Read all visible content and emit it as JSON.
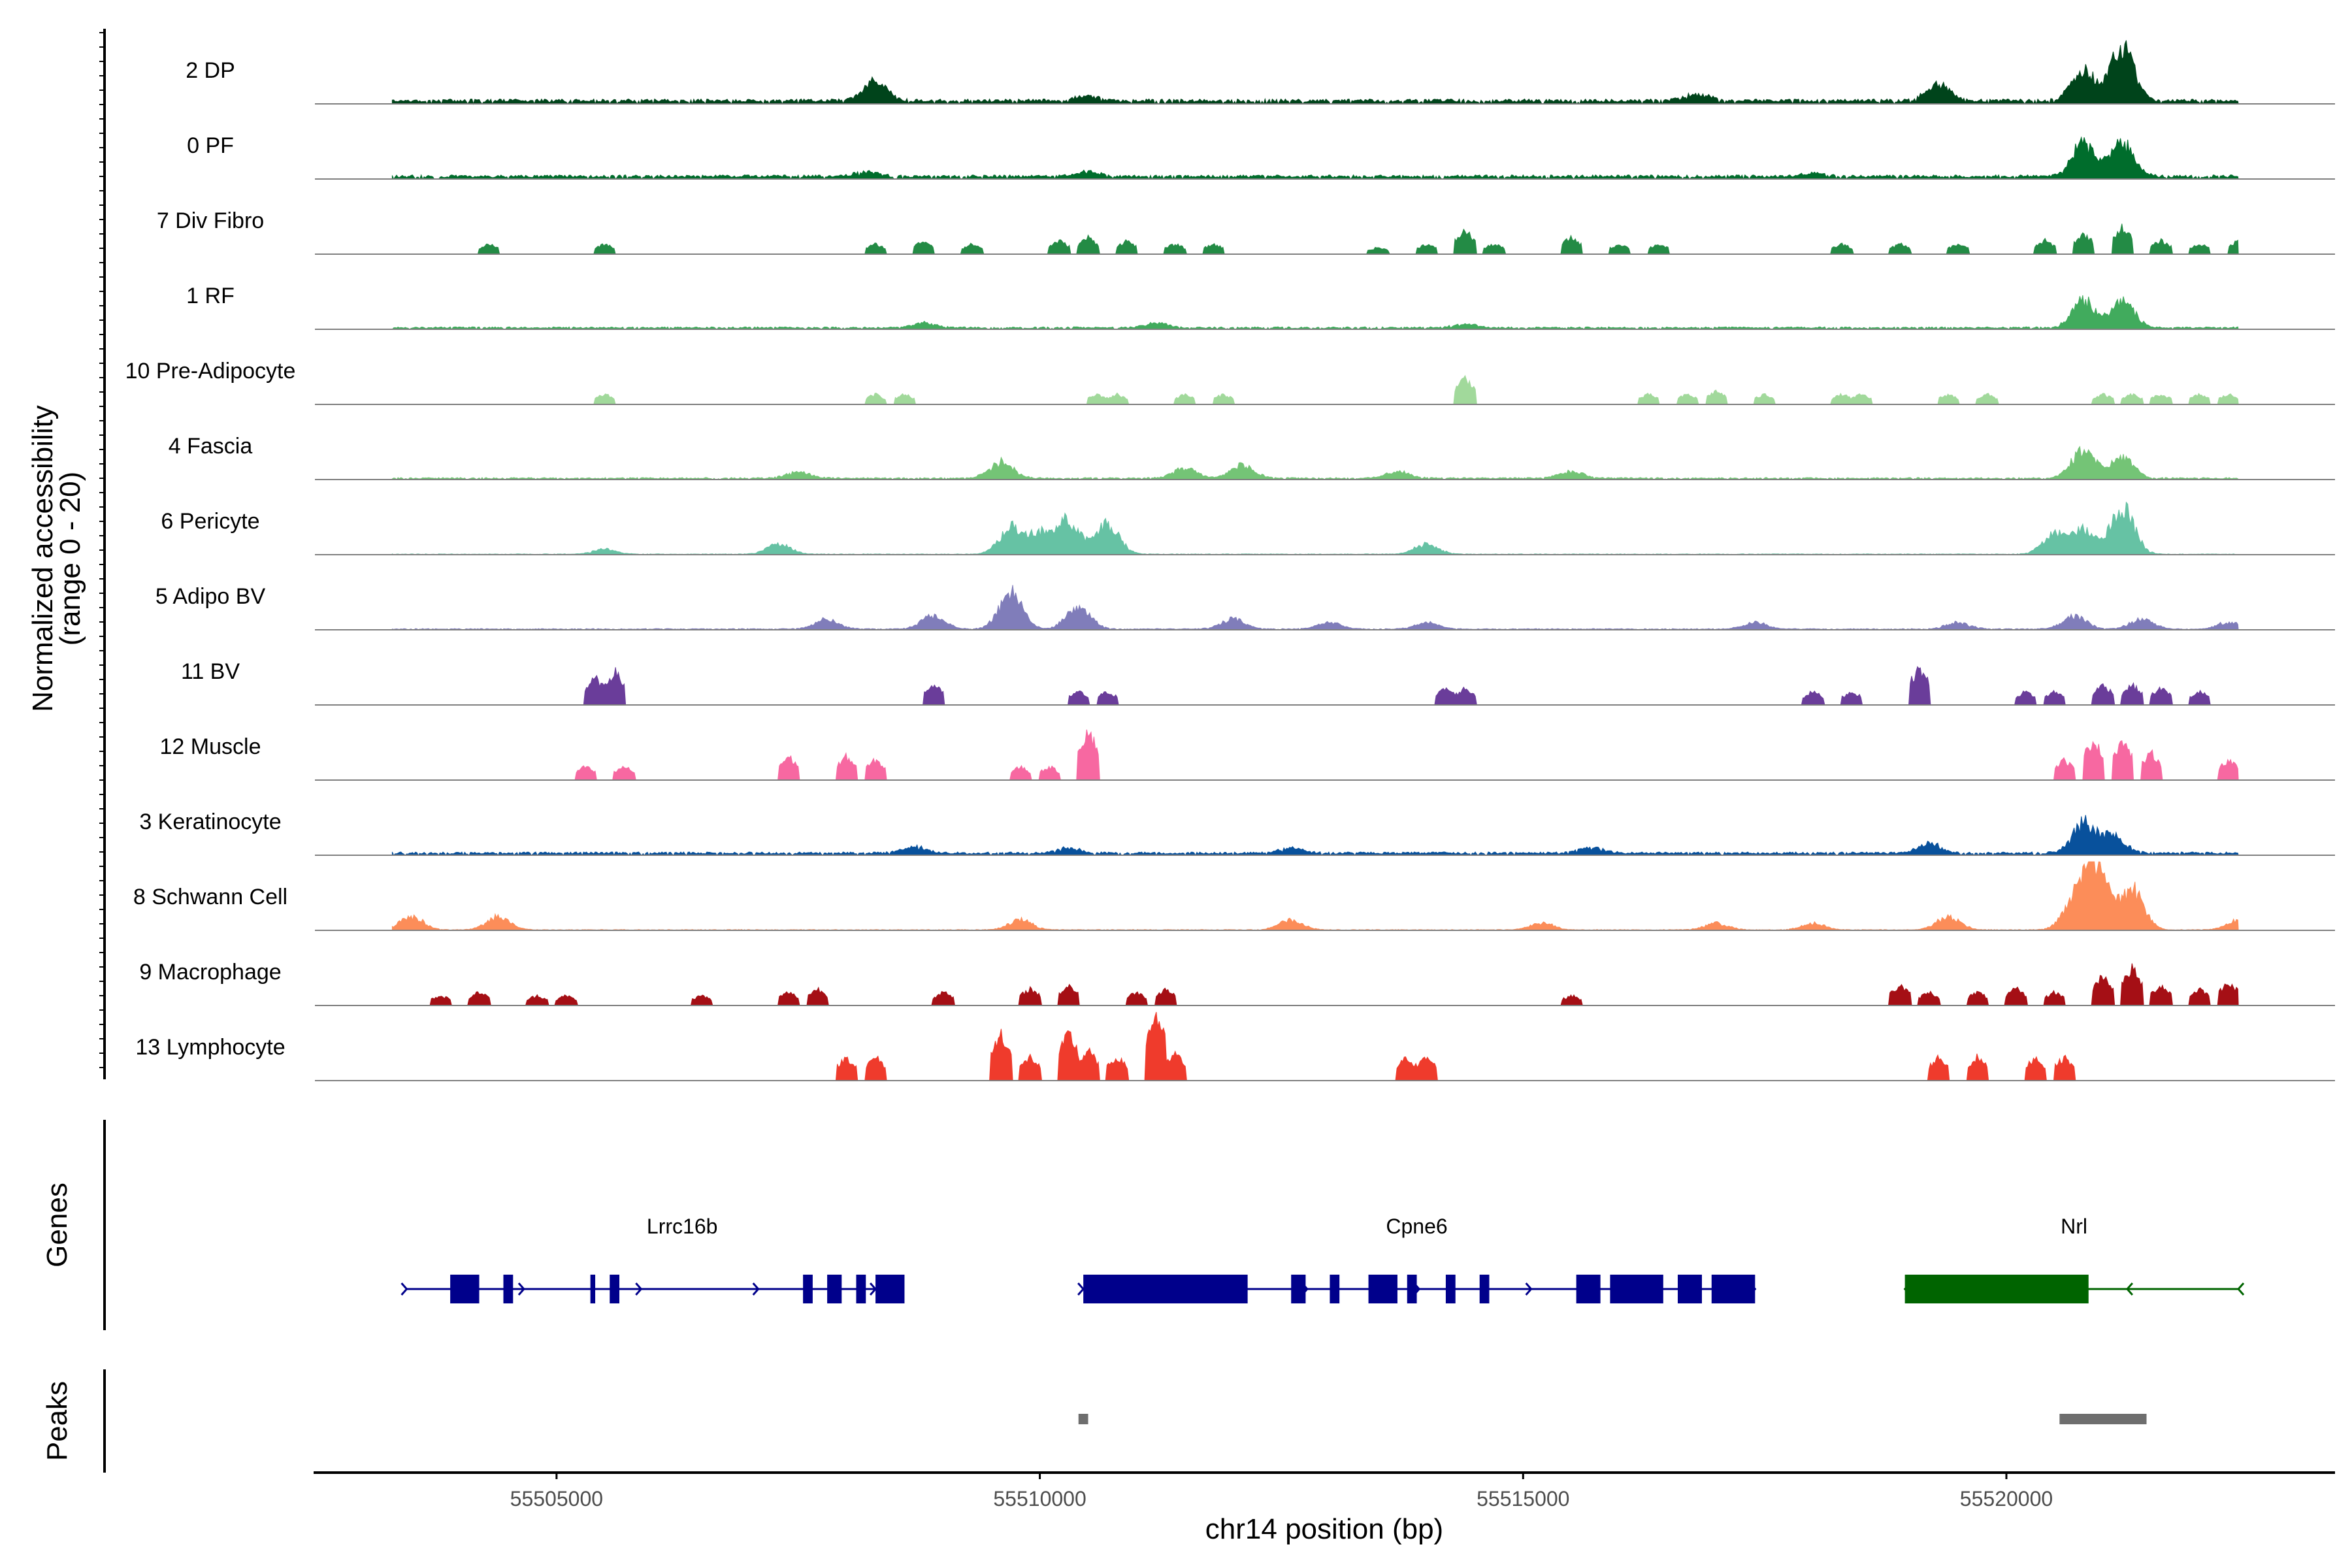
{
  "chart_data": {
    "type": "area",
    "title": "",
    "ylabel_line1": "Normalized accessibility",
    "ylabel_line2": "(range 0 - 20)",
    "genes_label": "Genes",
    "peaks_label": "Peaks",
    "xlabel": "chr14 position (bp)",
    "xlim": [
      55502500,
      55523400
    ],
    "ylim": [
      0,
      20
    ],
    "x_ticks": [
      55505000,
      55510000,
      55515000,
      55520000
    ],
    "x_tick_labels": [
      "55505000",
      "55510000",
      "55515000",
      "55520000"
    ],
    "tracks": [
      {
        "name": "2 DP",
        "color": "#00441b",
        "kind": "smooth",
        "baseline": 1.2,
        "peaks": [
          [
            55508300,
            6
          ],
          [
            55519300,
            5
          ],
          [
            55520800,
            9
          ],
          [
            55521200,
            16
          ],
          [
            55516800,
            2
          ],
          [
            55510500,
            1.5
          ]
        ]
      },
      {
        "name": "0 PF",
        "color": "#006d2c",
        "kind": "smooth",
        "baseline": 1.0,
        "peaks": [
          [
            55520800,
            10
          ],
          [
            55521200,
            10
          ],
          [
            55510500,
            1.5
          ],
          [
            55518000,
            1
          ],
          [
            55508200,
            1.2
          ]
        ]
      },
      {
        "name": "7 Div Fibro",
        "color": "#238b45",
        "kind": "blocky",
        "baseline": 0,
        "peaks": [
          [
            55504300,
            3
          ],
          [
            55505500,
            3
          ],
          [
            55508300,
            3
          ],
          [
            55508800,
            4
          ],
          [
            55509300,
            3
          ],
          [
            55510200,
            4
          ],
          [
            55510500,
            5
          ],
          [
            55510900,
            4
          ],
          [
            55511400,
            3
          ],
          [
            55511800,
            3
          ],
          [
            55513500,
            2
          ],
          [
            55514000,
            3
          ],
          [
            55514400,
            7
          ],
          [
            55514700,
            3
          ],
          [
            55515500,
            5
          ],
          [
            55516000,
            3
          ],
          [
            55516400,
            3
          ],
          [
            55518300,
            3
          ],
          [
            55518900,
            3
          ],
          [
            55519500,
            3
          ],
          [
            55520400,
            4
          ],
          [
            55520800,
            6
          ],
          [
            55521200,
            8
          ],
          [
            55521600,
            4
          ],
          [
            55522000,
            3
          ],
          [
            55522400,
            4
          ]
        ]
      },
      {
        "name": "1 RF",
        "color": "#41ab5d",
        "kind": "smooth",
        "baseline": 0.6,
        "peaks": [
          [
            55520800,
            8
          ],
          [
            55521200,
            8
          ],
          [
            55508800,
            1.5
          ],
          [
            55511200,
            1.5
          ],
          [
            55514400,
            1.2
          ]
        ]
      },
      {
        "name": "10 Pre-Adipocyte",
        "color": "#a1d99b",
        "kind": "blocky",
        "baseline": 0,
        "peaks": [
          [
            55505500,
            3
          ],
          [
            55508300,
            3
          ],
          [
            55508600,
            3
          ],
          [
            55510600,
            3
          ],
          [
            55510800,
            3
          ],
          [
            55511500,
            3
          ],
          [
            55511900,
            3
          ],
          [
            55514400,
            8
          ],
          [
            55516300,
            3
          ],
          [
            55516700,
            3
          ],
          [
            55517000,
            4
          ],
          [
            55517500,
            3
          ],
          [
            55518300,
            3
          ],
          [
            55518500,
            3
          ],
          [
            55519400,
            3
          ],
          [
            55519800,
            3
          ],
          [
            55521000,
            3
          ],
          [
            55521300,
            3
          ],
          [
            55521600,
            3
          ],
          [
            55522000,
            3
          ],
          [
            55522300,
            3
          ]
        ]
      },
      {
        "name": "4 Fascia",
        "color": "#74c476",
        "kind": "smooth",
        "baseline": 0.5,
        "peaks": [
          [
            55509600,
            5
          ],
          [
            55512100,
            4
          ],
          [
            55511500,
            3
          ],
          [
            55513700,
            2
          ],
          [
            55515500,
            2
          ],
          [
            55520800,
            9
          ],
          [
            55521200,
            6
          ],
          [
            55507500,
            2
          ]
        ]
      },
      {
        "name": "6 Pericyte",
        "color": "#66c2a4",
        "kind": "smooth",
        "baseline": 0.2,
        "peaks": [
          [
            55509700,
            8
          ],
          [
            55510300,
            10
          ],
          [
            55510700,
            9
          ],
          [
            55510000,
            6
          ],
          [
            55507300,
            3
          ],
          [
            55514000,
            3
          ],
          [
            55520500,
            6
          ],
          [
            55520800,
            7
          ],
          [
            55521200,
            14
          ],
          [
            55505500,
            1.5
          ]
        ]
      },
      {
        "name": "5 Adipo BV",
        "color": "#807dba",
        "kind": "smooth",
        "baseline": 0.3,
        "peaks": [
          [
            55509700,
            11
          ],
          [
            55510400,
            7
          ],
          [
            55508900,
            4
          ],
          [
            55507800,
            3
          ],
          [
            55512000,
            3
          ],
          [
            55513000,
            2
          ],
          [
            55514000,
            2
          ],
          [
            55517400,
            2
          ],
          [
            55519500,
            2
          ],
          [
            55520700,
            4
          ],
          [
            55521400,
            3
          ],
          [
            55522300,
            2
          ]
        ]
      },
      {
        "name": "11 BV",
        "color": "#6a3d9a",
        "kind": "blocky",
        "baseline": 0,
        "peaks": [
          [
            55505400,
            8
          ],
          [
            55505600,
            10
          ],
          [
            55508900,
            6
          ],
          [
            55510400,
            4
          ],
          [
            55510700,
            4
          ],
          [
            55514200,
            5
          ],
          [
            55514400,
            5
          ],
          [
            55518000,
            4
          ],
          [
            55518400,
            4
          ],
          [
            55519100,
            11
          ],
          [
            55520200,
            4
          ],
          [
            55520500,
            4
          ],
          [
            55521000,
            6
          ],
          [
            55521300,
            6
          ],
          [
            55521600,
            5
          ],
          [
            55522000,
            4
          ]
        ]
      },
      {
        "name": "12 Muscle",
        "color": "#f768a1",
        "kind": "blocky",
        "baseline": 0,
        "peaks": [
          [
            55505300,
            4
          ],
          [
            55505700,
            4
          ],
          [
            55507400,
            7
          ],
          [
            55508000,
            7
          ],
          [
            55508300,
            6
          ],
          [
            55509800,
            4
          ],
          [
            55510100,
            4
          ],
          [
            55510500,
            15
          ],
          [
            55520600,
            6
          ],
          [
            55520900,
            12
          ],
          [
            55521200,
            12
          ],
          [
            55521500,
            8
          ],
          [
            55522300,
            6
          ]
        ]
      },
      {
        "name": "3 Keratinocyte",
        "color": "#08519c",
        "kind": "smooth",
        "baseline": 0.8,
        "peaks": [
          [
            55520800,
            9
          ],
          [
            55521100,
            5
          ],
          [
            55519200,
            3
          ],
          [
            55508700,
            2
          ],
          [
            55515700,
            2
          ],
          [
            55510300,
            1.5
          ],
          [
            55512600,
            1.5
          ]
        ]
      },
      {
        "name": "8 Schwann Cell",
        "color": "#fc8d59",
        "kind": "mixed",
        "baseline": 0.2,
        "peaks": [
          [
            55503500,
            4
          ],
          [
            55504400,
            4
          ],
          [
            55509800,
            3
          ],
          [
            55512600,
            3
          ],
          [
            55515200,
            2
          ],
          [
            55517000,
            2
          ],
          [
            55518000,
            2
          ],
          [
            55519400,
            4
          ],
          [
            55520700,
            8
          ],
          [
            55520900,
            15
          ],
          [
            55521300,
            12
          ],
          [
            55521000,
            6
          ],
          [
            55522400,
            3
          ]
        ]
      },
      {
        "name": "9 Macrophage",
        "color": "#a50f15",
        "kind": "blocky",
        "baseline": 0,
        "peaks": [
          [
            55503800,
            3
          ],
          [
            55504200,
            4
          ],
          [
            55504800,
            3
          ],
          [
            55505100,
            3
          ],
          [
            55506500,
            3
          ],
          [
            55507400,
            4
          ],
          [
            55507700,
            5
          ],
          [
            55509000,
            4
          ],
          [
            55509900,
            5
          ],
          [
            55510300,
            6
          ],
          [
            55511000,
            4
          ],
          [
            55511300,
            5
          ],
          [
            55515500,
            3
          ],
          [
            55518900,
            6
          ],
          [
            55519200,
            4
          ],
          [
            55519700,
            4
          ],
          [
            55520100,
            5
          ],
          [
            55520500,
            4
          ],
          [
            55521000,
            9
          ],
          [
            55521300,
            11
          ],
          [
            55521600,
            6
          ],
          [
            55522000,
            5
          ],
          [
            55522300,
            7
          ]
        ]
      },
      {
        "name": "13 Lymphocyte",
        "color": "#ef3b2c",
        "kind": "blocky",
        "baseline": 0,
        "peaks": [
          [
            55508000,
            7
          ],
          [
            55508300,
            7
          ],
          [
            55509600,
            14
          ],
          [
            55509900,
            7
          ],
          [
            55510300,
            14
          ],
          [
            55510500,
            9
          ],
          [
            55510800,
            7
          ],
          [
            55511200,
            20
          ],
          [
            55511400,
            8
          ],
          [
            55513800,
            7
          ],
          [
            55514000,
            7
          ],
          [
            55519300,
            7
          ],
          [
            55519700,
            7
          ],
          [
            55520300,
            7
          ],
          [
            55520600,
            7
          ]
        ]
      }
    ],
    "genes": [
      {
        "name": "Lrrc16b",
        "strand": "+",
        "color": "#00008b",
        "start": 55503450,
        "end": 55508300,
        "label_x": 55506300,
        "exons": [
          [
            55503900,
            55504200
          ],
          [
            55504450,
            55504550
          ],
          [
            55505350,
            55505400
          ],
          [
            55505550,
            55505650
          ],
          [
            55507550,
            55507650
          ],
          [
            55507800,
            55507950
          ],
          [
            55508100,
            55508200
          ],
          [
            55508300,
            55508600
          ]
        ]
      },
      {
        "name": "Cpne6",
        "strand": "+",
        "color": "#00008b",
        "start": 55510450,
        "end": 55517400,
        "label_x": 55513900,
        "exons": [
          [
            55510450,
            55512150
          ],
          [
            55512600,
            55512750
          ],
          [
            55513000,
            55513100
          ],
          [
            55513400,
            55513700
          ],
          [
            55513800,
            55513900
          ],
          [
            55514200,
            55514300
          ],
          [
            55514550,
            55514650
          ],
          [
            55515550,
            55515800
          ],
          [
            55515900,
            55516450
          ],
          [
            55516600,
            55516850
          ],
          [
            55516950,
            55517400
          ]
        ]
      },
      {
        "name": "Nrl",
        "strand": "-",
        "color": "#006400",
        "start": 55518950,
        "end": 55522400,
        "label_x": 55520700,
        "exons": [
          [
            55518950,
            55520850
          ]
        ]
      }
    ],
    "peak_regions": [
      [
        55510400,
        55510500
      ],
      [
        55520550,
        55521450
      ]
    ]
  }
}
